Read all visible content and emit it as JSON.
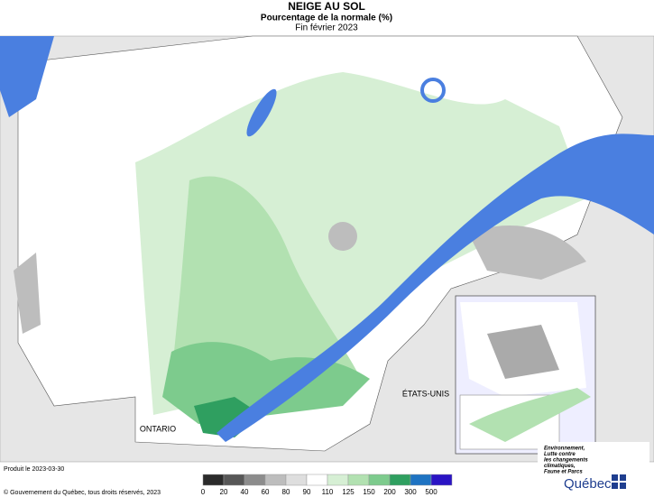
{
  "header": {
    "title": "NEIGE AU SOL",
    "subtitle": "Pourcentage de la normale (%)",
    "period": "Fin février 2023"
  },
  "map": {
    "labels": [
      "ONTARIO",
      "ÉTATS-UNIS"
    ]
  },
  "legend": {
    "ticks": [
      0,
      20,
      40,
      60,
      80,
      90,
      110,
      125,
      150,
      200,
      300,
      500
    ],
    "colors": [
      "#2b2b2b",
      "#575757",
      "#8c8c8c",
      "#bdbdbd",
      "#dedede",
      "#ffffff",
      "#d6efd4",
      "#b2e1b1",
      "#7dcb8d",
      "#2f9f60",
      "#1e73c2",
      "#2a14c4"
    ]
  },
  "footer": {
    "produced": "Produit le 2023-03-30",
    "copyright": "© Gouvernement du Québec, tous droits réservés, 2023"
  },
  "logo": {
    "ministry": [
      "Environnement,",
      "Lutte contre",
      "les changements",
      "climatiques,",
      "Faune et Parcs"
    ],
    "name": "Québec"
  }
}
